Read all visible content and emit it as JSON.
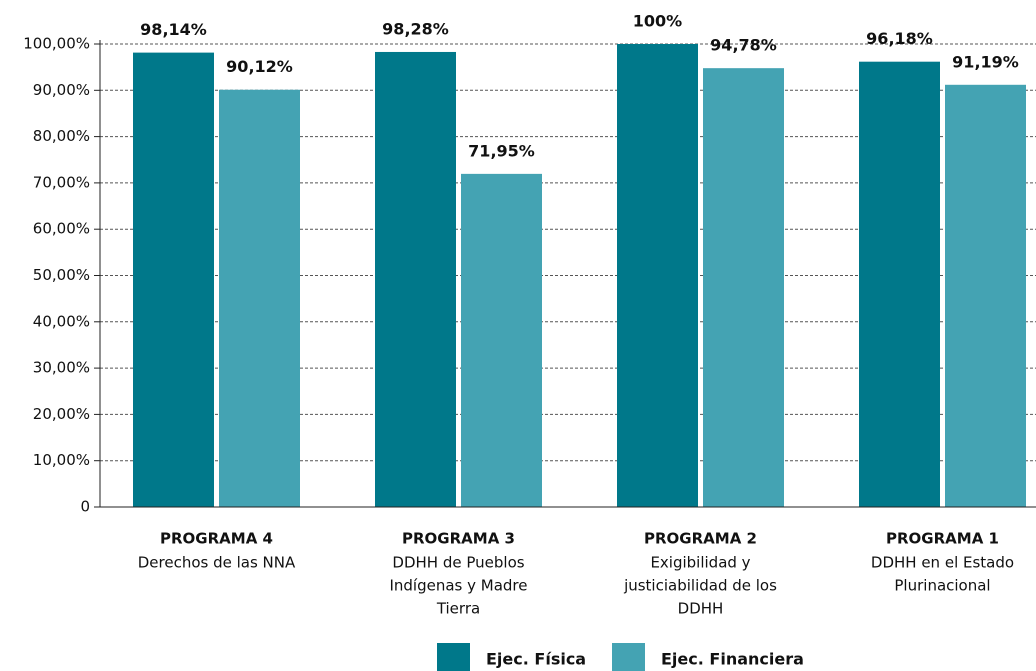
{
  "chart_data": {
    "type": "bar",
    "categories": [
      "PROGRAMA 4",
      "PROGRAMA 3",
      "PROGRAMA 2",
      "PROGRAMA 1"
    ],
    "category_descriptions": [
      [
        "Derechos de las NNA"
      ],
      [
        "DDHH de Pueblos",
        "Indígenas y Madre",
        "Tierra"
      ],
      [
        "Exigibilidad y",
        "justiciabilidad de los",
        "DDHH"
      ],
      [
        "DDHH en el Estado",
        "Plurinacional"
      ]
    ],
    "series": [
      {
        "name": "Ejec. Física",
        "color": "#00788a",
        "values": [
          98.14,
          98.28,
          100,
          96.18
        ],
        "value_labels": [
          "98,14%",
          "98,28%",
          "100%",
          "96,18%"
        ]
      },
      {
        "name": "Ejec. Financiera",
        "color": "#44a3b3",
        "values": [
          90.12,
          71.95,
          94.78,
          91.19
        ],
        "value_labels": [
          "90,12%",
          "71,95%",
          "94,78%",
          "91,19%"
        ]
      }
    ],
    "ylim": [
      0,
      100
    ],
    "yticks": [
      0,
      {
        "value": 10,
        "label": "10,00%"
      },
      {
        "value": 20,
        "label": "20,00%"
      },
      {
        "value": 30,
        "label": "30,00%"
      },
      {
        "value": 40,
        "label": "40,00%"
      },
      {
        "value": 50,
        "label": "50,00%"
      },
      {
        "value": 60,
        "label": "60,00%"
      },
      {
        "value": 70,
        "label": "70,00%"
      },
      {
        "value": 80,
        "label": "80,00%"
      },
      {
        "value": 90,
        "label": "90,00%"
      },
      {
        "value": 100,
        "label": "100,00%"
      }
    ],
    "grid": true,
    "legend": "bottom"
  }
}
